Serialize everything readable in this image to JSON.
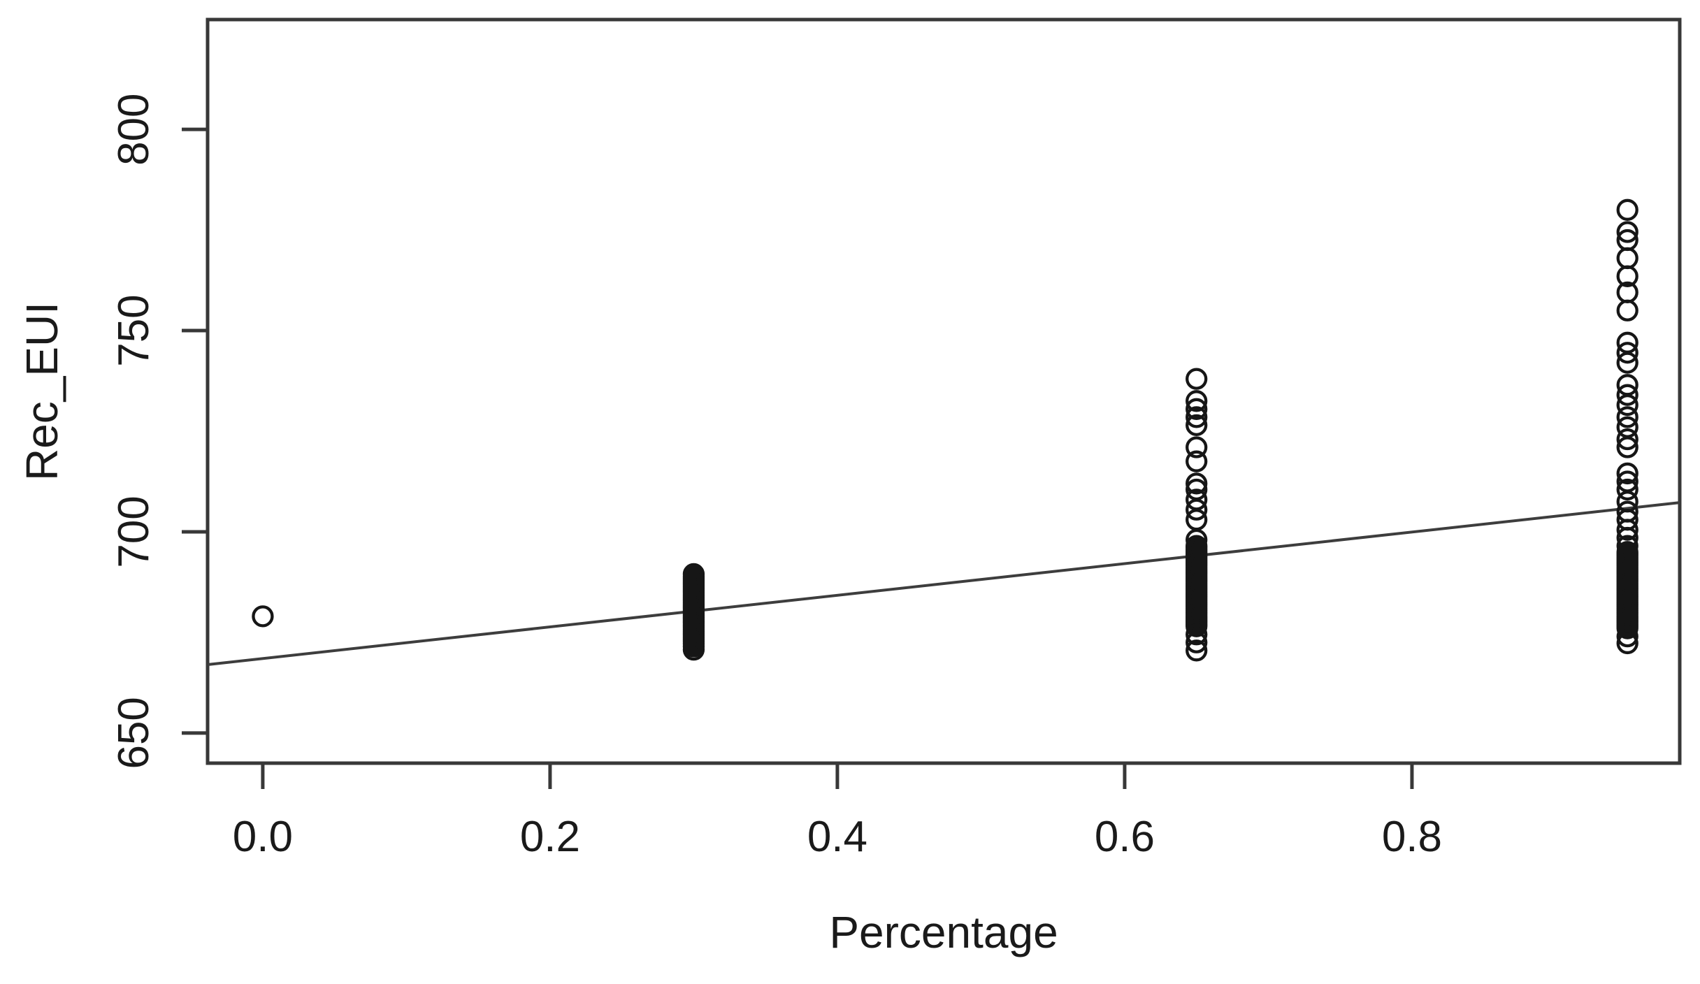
{
  "figure": {
    "title": "",
    "xlabel": "Percentage",
    "ylabel": "Rec_EUI"
  },
  "chart_data": {
    "type": "scatter",
    "title": "",
    "xlabel": "Percentage",
    "ylabel": "Rec_EUI",
    "x_ticks": [
      0.0,
      0.2,
      0.4,
      0.6,
      0.8
    ],
    "x_tick_labels": [
      "0.0",
      "0.2",
      "0.4",
      "0.6",
      "0.8"
    ],
    "y_ticks": [
      650,
      700,
      750,
      800
    ],
    "y_tick_labels": [
      "650",
      "700",
      "750",
      "800"
    ],
    "xlim": [
      -0.0384,
      0.9864
    ],
    "ylim": [
      642.5,
      827.3
    ],
    "grid": false,
    "legend": null,
    "marker": "open-circle",
    "marker_radius_px": 13.5,
    "colors": {
      "points": "#161616",
      "regression_line": "#3d3d3d",
      "axis": "#383838",
      "text": "#1a1a1a",
      "background": "#ffffff"
    },
    "regression_line": {
      "intercept": 668.5,
      "slope": 39.3
    },
    "series": [
      {
        "name": "observations-x0.00",
        "x": 0.0,
        "y": [
          679
        ]
      },
      {
        "name": "observations-x0.30",
        "x": 0.3,
        "y": [
          689.5,
          688.8,
          688.3,
          687.8,
          687.3,
          686.8,
          686.3,
          685.8,
          685.3,
          684.8,
          684.3,
          683.8,
          683.3,
          682.8,
          682.3,
          681.8,
          681.3,
          680.8,
          680.3,
          679.8,
          679.3,
          678.8,
          678.3,
          677.8,
          677.3,
          676.8,
          676.3,
          675.8,
          675.3,
          674.8,
          674.3,
          673.8,
          673.3,
          672.8,
          672.2,
          671.5,
          670.7
        ]
      },
      {
        "name": "observations-x0.65",
        "x": 0.65,
        "y": [
          738,
          732.5,
          730.5,
          728.5,
          726.5,
          721,
          717.5,
          712,
          710.5,
          708,
          705.5,
          703,
          698,
          696.5,
          696,
          695.5,
          695,
          694.5,
          694,
          693.5,
          693,
          692.5,
          692,
          691.5,
          691,
          690.5,
          690,
          689.5,
          689,
          688.5,
          688,
          687.5,
          687,
          686.5,
          686,
          685.5,
          685,
          684.5,
          684,
          683.5,
          683,
          682.5,
          682,
          681.5,
          681,
          680.5,
          680,
          679.5,
          679,
          678.5,
          678,
          677.5,
          677,
          676.5,
          674.5,
          672.5,
          670.5
        ]
      },
      {
        "name": "observations-x0.95",
        "x": 0.95,
        "y": [
          780,
          774.5,
          772.5,
          768,
          763.5,
          759.5,
          755,
          747,
          744.5,
          742,
          736.5,
          734,
          731.5,
          728.5,
          726,
          723,
          721,
          714.5,
          712.5,
          710.5,
          707.5,
          705,
          703,
          700.5,
          698.5,
          696.5,
          695,
          694.5,
          694,
          693.5,
          693,
          692.5,
          692,
          691.5,
          691,
          690.5,
          690,
          689.5,
          689,
          688.5,
          688,
          687.5,
          687,
          686.5,
          686,
          685.5,
          685,
          684.5,
          684,
          683.5,
          683,
          682.5,
          682,
          681.5,
          681,
          680.5,
          680,
          679.5,
          679,
          678.5,
          678,
          677.5,
          677,
          676.5,
          676,
          674,
          672.3
        ]
      }
    ]
  }
}
